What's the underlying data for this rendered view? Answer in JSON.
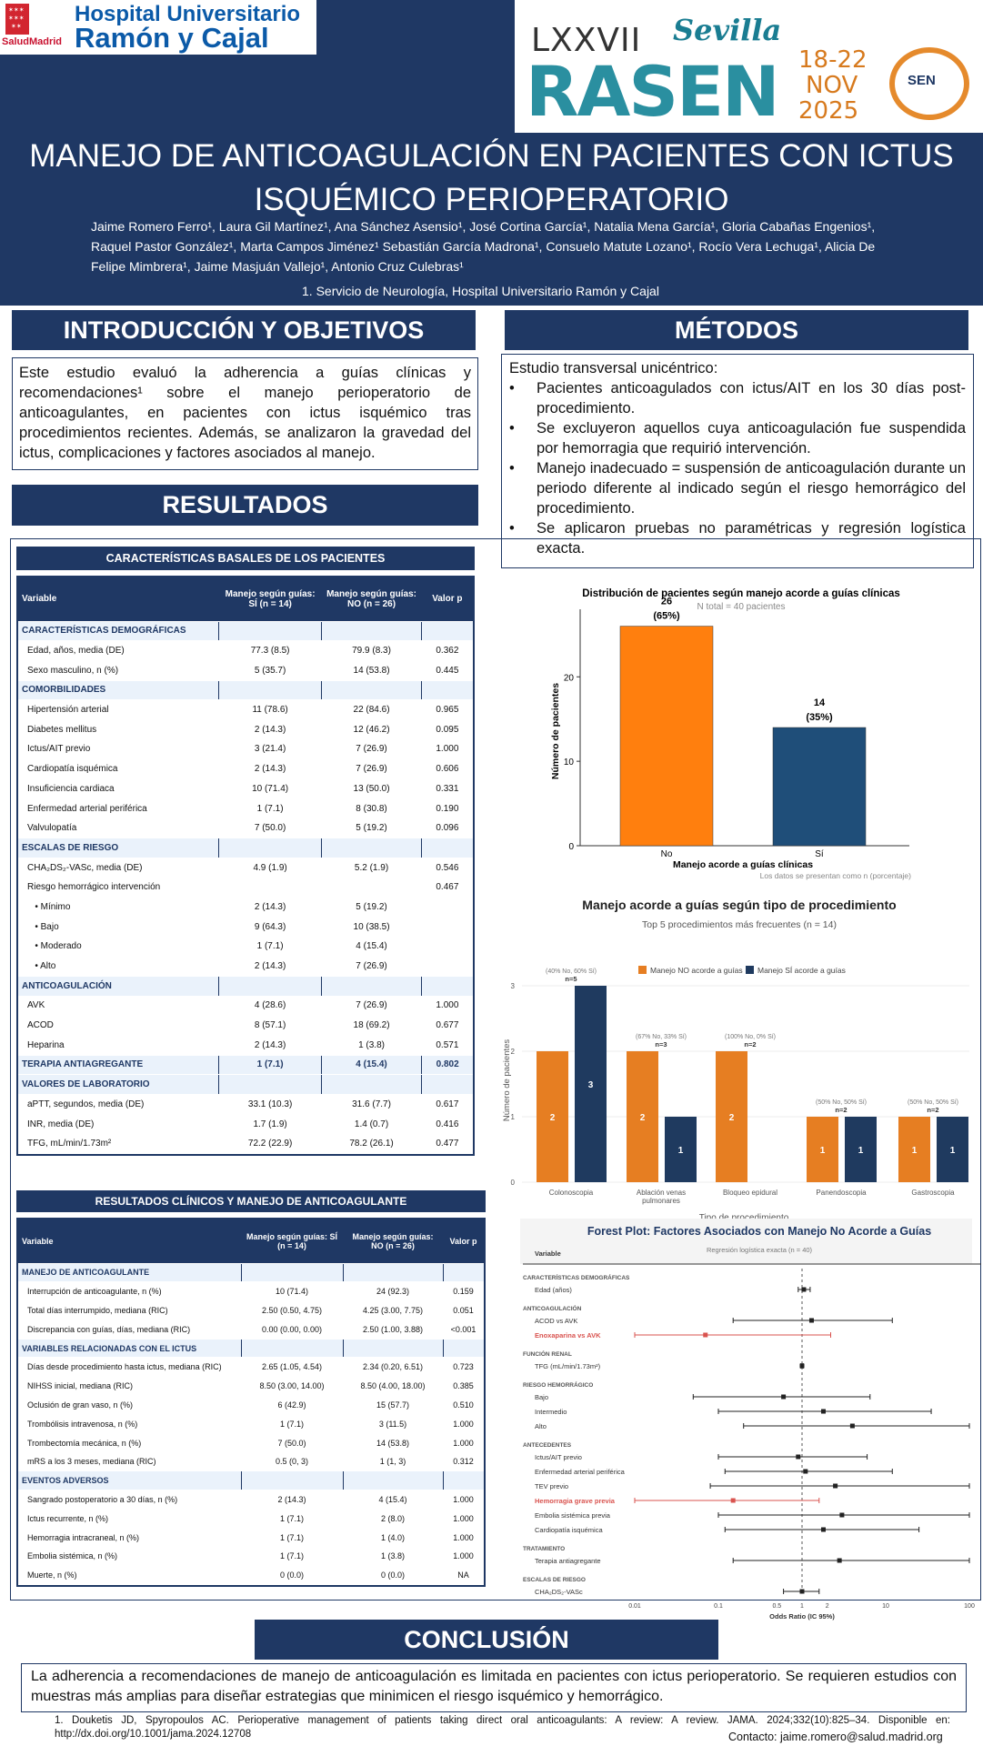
{
  "header": {
    "hospital_name_line1": "Hospital Universitario",
    "hospital_name_line2": "Ramón y Cajal",
    "salud_label": "SaludMadrid",
    "congress_number": "LXXVII",
    "congress_name": "RASEN",
    "congress_city": "Sevilla",
    "congress_dates": [
      "18-22",
      "NOV",
      "2025"
    ],
    "society": "SEN",
    "title_line1": "MANEJO DE ANTICOAGULACIÓN EN PACIENTES CON ICTUS",
    "title_line2": "ISQUÉMICO PERIOPERATORIO",
    "authors": "Jaime Romero Ferro¹, Laura Gil Martínez¹, Ana Sánchez Asensio¹, José Cortina García¹, Natalia Mena García¹, Gloria Cabañas Engenios¹, Raquel Pastor González¹, Marta Campos Jiménez¹ Sebastián García Madrona¹, Consuelo Matute Lozano¹, Rocío Vera Lechuga¹, Alicia De Felipe Mimbrera¹, Jaime Masjuán Vallejo¹, Antonio Cruz Culebras¹",
    "affiliation": "1.      Servicio de Neurología, Hospital Universitario Ramón y Cajal"
  },
  "intro": {
    "heading": "INTRODUCCIÓN Y OBJETIVOS",
    "text": "Este estudio evaluó la adherencia a guías clínicas y recomendaciones¹ sobre el manejo perioperatorio de anticoagulantes, en pacientes con ictus isquémico tras procedimientos recientes. Además, se analizaron la gravedad del ictus, complicaciones y factores asociados al manejo."
  },
  "methods": {
    "heading": "MÉTODOS",
    "lead": "Estudio transversal unicéntrico:",
    "bullets": [
      "Pacientes anticoagulados con ictus/AIT en los 30 días post-procedimiento.",
      "Se excluyeron aquellos cuya anticoagulación fue suspendida por hemorragia que requirió intervención.",
      "Manejo inadecuado = suspensión de anticoagulación durante un periodo diferente al indicado según el riesgo hemorrágico del procedimiento.",
      "Se aplicaron pruebas no paramétricas y regresión logística exacta."
    ]
  },
  "results": {
    "heading": "RESULTADOS"
  },
  "table1": {
    "title": "CARACTERÍSTICAS BASALES DE LOS PACIENTES",
    "headers": [
      "Variable",
      "Manejo según guías: SÍ (n = 14)",
      "Manejo según guías: NO (n = 26)",
      "Valor p"
    ],
    "rows": [
      {
        "cat": "CARACTERÍSTICAS DEMOGRÁFICAS"
      },
      {
        "v": "Edad, años, media (DE)",
        "a": "77.3 (8.5)",
        "b": "79.9 (8.3)",
        "p": "0.362"
      },
      {
        "v": "Sexo masculino, n (%)",
        "a": "5 (35.7)",
        "b": "14 (53.8)",
        "p": "0.445"
      },
      {
        "cat": "COMORBILIDADES"
      },
      {
        "v": "Hipertensión arterial",
        "a": "11 (78.6)",
        "b": "22 (84.6)",
        "p": "0.965"
      },
      {
        "v": "Diabetes mellitus",
        "a": "2 (14.3)",
        "b": "12 (46.2)",
        "p": "0.095"
      },
      {
        "v": "Ictus/AIT previo",
        "a": "3 (21.4)",
        "b": "7 (26.9)",
        "p": "1.000"
      },
      {
        "v": "Cardiopatía isquémica",
        "a": "2 (14.3)",
        "b": "7 (26.9)",
        "p": "0.606"
      },
      {
        "v": "Insuficiencia cardiaca",
        "a": "10 (71.4)",
        "b": "13 (50.0)",
        "p": "0.331"
      },
      {
        "v": "Enfermedad arterial periférica",
        "a": "1 (7.1)",
        "b": "8 (30.8)",
        "p": "0.190"
      },
      {
        "v": "Valvulopatía",
        "a": "7 (50.0)",
        "b": "5 (19.2)",
        "p": "0.096"
      },
      {
        "cat": "ESCALAS DE RIESGO"
      },
      {
        "v": "CHA₂DS₂-VASc, media (DE)",
        "a": "4.9 (1.9)",
        "b": "5.2 (1.9)",
        "p": "0.546"
      },
      {
        "v": "Riesgo hemorrágico intervención",
        "a": "",
        "b": "",
        "p": "0.467"
      },
      {
        "v": "   • Mínimo",
        "a": "2 (14.3)",
        "b": "5 (19.2)",
        "p": ""
      },
      {
        "v": "   • Bajo",
        "a": "9 (64.3)",
        "b": "10 (38.5)",
        "p": ""
      },
      {
        "v": "   • Moderado",
        "a": "1 (7.1)",
        "b": "4 (15.4)",
        "p": ""
      },
      {
        "v": "   • Alto",
        "a": "2 (14.3)",
        "b": "7 (26.9)",
        "p": ""
      },
      {
        "cat": "ANTICOAGULACIÓN"
      },
      {
        "v": "AVK",
        "a": "4 (28.6)",
        "b": "7 (26.9)",
        "p": "1.000"
      },
      {
        "v": "ACOD",
        "a": "8 (57.1)",
        "b": "18 (69.2)",
        "p": "0.677"
      },
      {
        "v": "Heparina",
        "a": "2 (14.3)",
        "b": "1 (3.8)",
        "p": "0.571"
      },
      {
        "cat": "TERAPIA ANTIAGREGANTE",
        "a": "1 (7.1)",
        "b": "4 (15.4)",
        "p": "0.802"
      },
      {
        "cat": "VALORES DE LABORATORIO"
      },
      {
        "v": "aPTT, segundos, media (DE)",
        "a": "33.1 (10.3)",
        "b": "31.6 (7.7)",
        "p": "0.617"
      },
      {
        "v": "INR, media (DE)",
        "a": "1.7 (1.9)",
        "b": "1.4 (0.7)",
        "p": "0.416"
      },
      {
        "v": "TFG, mL/min/1.73m²",
        "a": "72.2 (22.9)",
        "b": "78.2 (26.1)",
        "p": "0.477"
      }
    ]
  },
  "table2": {
    "title": "RESULTADOS CLÍNICOS Y MANEJO DE ANTICOAGULANTE",
    "headers": [
      "Variable",
      "Manejo según guías: SÍ (n = 14)",
      "Manejo según guías: NO (n = 26)",
      "Valor p"
    ],
    "rows": [
      {
        "cat": "MANEJO DE ANTICOAGULANTE"
      },
      {
        "v": "Interrupción de anticoagulante, n (%)",
        "a": "10 (71.4)",
        "b": "24 (92.3)",
        "p": "0.159"
      },
      {
        "v": "Total días interrumpido, mediana (RIC)",
        "a": "2.50 (0.50, 4.75)",
        "b": "4.25 (3.00, 7.75)",
        "p": "0.051"
      },
      {
        "v": "Discrepancia con guías, días, mediana (RIC)",
        "a": "0.00 (0.00, 0.00)",
        "b": "2.50 (1.00, 3.88)",
        "p": "<0.001"
      },
      {
        "cat": "VARIABLES RELACIONADAS CON EL ICTUS"
      },
      {
        "v": "Días desde procedimiento hasta ictus, mediana (RIC)",
        "a": "2.65 (1.05, 4.54)",
        "b": "2.34 (0.20, 6.51)",
        "p": "0.723"
      },
      {
        "v": "NIHSS inicial, mediana (RIC)",
        "a": "8.50 (3.00, 14.00)",
        "b": "8.50 (4.00, 18.00)",
        "p": "0.385"
      },
      {
        "v": "Oclusión de gran vaso, n (%)",
        "a": "6 (42.9)",
        "b": "15 (57.7)",
        "p": "0.510"
      },
      {
        "v": "Trombólisis intravenosa, n (%)",
        "a": "1 (7.1)",
        "b": "3 (11.5)",
        "p": "1.000"
      },
      {
        "v": "Trombectomía mecánica, n (%)",
        "a": "7 (50.0)",
        "b": "14 (53.8)",
        "p": "1.000"
      },
      {
        "v": "mRS a los 3 meses, mediana (RIC)",
        "a": "0.5 (0, 3)",
        "b": "1 (1, 3)",
        "p": "0.312"
      },
      {
        "cat": "EVENTOS ADVERSOS"
      },
      {
        "v": "Sangrado postoperatorio a 30 días, n (%)",
        "a": "2 (14.3)",
        "b": "4 (15.4)",
        "p": "1.000"
      },
      {
        "v": "Ictus recurrente, n (%)",
        "a": "1 (7.1)",
        "b": "2 (8.0)",
        "p": "1.000"
      },
      {
        "v": "Hemorragia intracraneal, n (%)",
        "a": "1 (7.1)",
        "b": "1 (4.0)",
        "p": "1.000"
      },
      {
        "v": "Embolia sistémica, n (%)",
        "a": "1 (7.1)",
        "b": "1 (3.8)",
        "p": "1.000"
      },
      {
        "v": "Muerte, n (%)",
        "a": "0 (0.0)",
        "b": "0 (0.0)",
        "p": "NA"
      }
    ]
  },
  "chart_data": [
    {
      "type": "bar",
      "title": "Distribución de pacientes según manejo acorde a guías clínicas",
      "subtitle": "N total = 40 pacientes",
      "categories": [
        "No",
        "Sí"
      ],
      "values": [
        26,
        14
      ],
      "labels": [
        "26",
        "14"
      ],
      "percent_labels": [
        "(65%)",
        "(35%)"
      ],
      "colors": [
        "#ff7f0e",
        "#1f4e79"
      ],
      "xlabel": "Manejo acorde a guías clínicas",
      "ylabel": "Número de pacientes",
      "ylim": [
        0,
        28
      ],
      "yticks": [
        0,
        10,
        20
      ],
      "caption": "Los datos se presentan como n (porcentaje)"
    },
    {
      "type": "bar",
      "title": "Manejo acorde a guías según tipo de procedimiento",
      "subtitle": "Top 5 procedimientos más frecuentes (n = 14)",
      "categories": [
        "Colonoscopia",
        "Ablación venas pulmonares",
        "Bloqueo epidural",
        "Panendoscopia",
        "Gastroscopia"
      ],
      "series": [
        {
          "name": "Manejo NO acorde a guías",
          "color": "#e67e22",
          "values": [
            2,
            2,
            2,
            1,
            1
          ]
        },
        {
          "name": "Manejo SÍ acorde a guías",
          "color": "#1f3a5f",
          "values": [
            3,
            1,
            0,
            1,
            1
          ]
        }
      ],
      "group_labels": [
        "(40% No, 60% Sí)",
        "(67% No, 33% Sí)",
        "(100% No, 0% Sí)",
        "(50% No, 50% Sí)",
        "(50% No, 50% Sí)"
      ],
      "group_n": [
        "n=5",
        "n=3",
        "n=2",
        "n=2",
        "n=2"
      ],
      "xlabel": "Tipo de procedimiento",
      "ylabel": "Número de pacientes",
      "ylim": [
        0,
        3
      ],
      "yticks": [
        0,
        1,
        2,
        3
      ]
    },
    {
      "type": "scatter",
      "subtype": "forest",
      "title": "Forest Plot: Factores Asociados con Manejo No Acorde a Guías",
      "subtitle": "Regresión logística exacta (n = 40)",
      "column_header": "Variable",
      "xlabel": "Odds Ratio (IC 95%)",
      "xscale": "log",
      "xticks": [
        "0.01",
        "0.1",
        "0.5",
        "1",
        "2",
        "10",
        "100"
      ],
      "xtick_values": [
        0.01,
        0.1,
        0.5,
        1,
        2,
        10,
        100
      ],
      "xlim": [
        0.01,
        100
      ],
      "rows": [
        {
          "group": "CARACTERÍSTICAS DEMOGRÁFICAS"
        },
        {
          "label": "Edad (años)",
          "or": 1.05,
          "lo": 0.9,
          "hi": 1.25,
          "highlight": false
        },
        {
          "group": "ANTICOAGULACIÓN"
        },
        {
          "label": "ACOD vs AVK",
          "or": 1.3,
          "lo": 0.15,
          "hi": 12,
          "highlight": false
        },
        {
          "label": "Enoxaparina vs AVK",
          "or": 0.07,
          "lo": 0.01,
          "hi": 2.2,
          "highlight": true
        },
        {
          "group": "FUNCIÓN RENAL"
        },
        {
          "label": "TFG (mL/min/1.73m²)",
          "or": 1.0,
          "lo": 0.97,
          "hi": 1.03,
          "highlight": false
        },
        {
          "group": "RIESGO HEMORRÁGICO"
        },
        {
          "label": "Bajo",
          "or": 0.6,
          "lo": 0.05,
          "hi": 6.5,
          "highlight": false
        },
        {
          "label": "Intermedio",
          "or": 1.8,
          "lo": 0.1,
          "hi": 35,
          "highlight": false
        },
        {
          "label": "Alto",
          "or": 4.0,
          "lo": 0.2,
          "hi": 100,
          "highlight": false
        },
        {
          "group": "ANTECEDENTES"
        },
        {
          "label": "Ictus/AIT previo",
          "or": 0.9,
          "lo": 0.1,
          "hi": 6,
          "highlight": false
        },
        {
          "label": "Enfermedad arterial periférica",
          "or": 1.1,
          "lo": 0.12,
          "hi": 12,
          "highlight": false
        },
        {
          "label": "TEV previo",
          "or": 2.5,
          "lo": 0.08,
          "hi": 100,
          "highlight": false
        },
        {
          "label": "Hemorragia grave previa",
          "or": 0.15,
          "lo": 0.01,
          "hi": 1.6,
          "highlight": true
        },
        {
          "label": "Embolia sistémica previa",
          "or": 3.0,
          "lo": 0.1,
          "hi": 100,
          "highlight": false
        },
        {
          "label": "Cardiopatía isquémica",
          "or": 1.8,
          "lo": 0.12,
          "hi": 25,
          "highlight": false
        },
        {
          "group": "TRATAMIENTO"
        },
        {
          "label": "Terapia antiagregante",
          "or": 2.8,
          "lo": 0.15,
          "hi": 100,
          "highlight": false
        },
        {
          "group": "ESCALAS DE RIESGO"
        },
        {
          "label": "CHA₂DS₂-VASc",
          "or": 1.0,
          "lo": 0.6,
          "hi": 1.6,
          "highlight": false
        }
      ]
    }
  ],
  "conclusion": {
    "heading": "CONCLUSIÓN",
    "text": "La adherencia a recomendaciones de manejo de anticoagulación es limitada en pacientes con ictus perioperatorio. Se requieren estudios con muestras más amplias para diseñar estrategias que minimicen el riesgo isquémico y hemorrágico."
  },
  "footer": {
    "reference": "1. Douketis JD, Spyropoulos AC. Perioperative management of patients taking direct oral anticoagulants: A review: A review. JAMA. 2024;332(10):825–34. Disponible en: http://dx.doi.org/10.1001/jama.2024.12708",
    "contact": "Contacto: jaime.romero@salud.madrid.org"
  }
}
